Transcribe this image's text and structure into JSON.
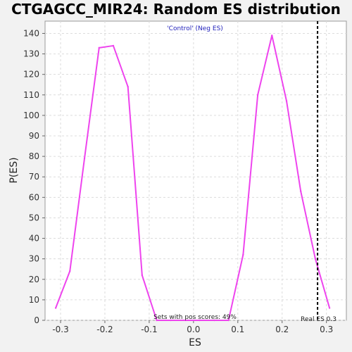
{
  "chart_data": {
    "type": "line",
    "title": "CTGAGCC_MIR24: Random ES distribution",
    "subtitle": "'Control' (Neg ES)",
    "xlabel": "ES",
    "ylabel": "P(ES)",
    "xlim": [
      -0.335,
      0.345
    ],
    "ylim": [
      0,
      146
    ],
    "x_ticks": [
      -0.3,
      -0.2,
      -0.1,
      0.0,
      0.1,
      0.2,
      0.3
    ],
    "x_tick_labels": [
      "-0.3",
      "-0.2",
      "-0.1",
      "0.0",
      "0.1",
      "0.2",
      "0.3"
    ],
    "y_ticks": [
      0,
      10,
      20,
      30,
      40,
      50,
      60,
      70,
      80,
      90,
      100,
      110,
      120,
      130,
      140
    ],
    "grid": true,
    "series": [
      {
        "x": [
          -0.311,
          -0.279,
          -0.246,
          -0.213,
          -0.181,
          -0.148,
          -0.116,
          -0.083,
          -0.051,
          -0.018,
          0.014,
          0.047,
          0.079,
          0.112,
          0.145,
          0.177,
          0.21,
          0.242,
          0.275,
          0.307
        ],
        "y": [
          6,
          24,
          79,
          133,
          134,
          114,
          22,
          0,
          0,
          0,
          0,
          0,
          0,
          32,
          110,
          139,
          107,
          63,
          30,
          6
        ]
      }
    ],
    "real_es": 0.28,
    "annotations": {
      "pos_scores": "Sets with pos scores: 49%",
      "real_es": "Real ES 0.3"
    },
    "colors": {
      "line": "#ee44ee",
      "subtitle": "#2222bb",
      "marker": "#000000",
      "plot_bg": "#ffffff",
      "page_bg": "#f2f2f2"
    }
  }
}
